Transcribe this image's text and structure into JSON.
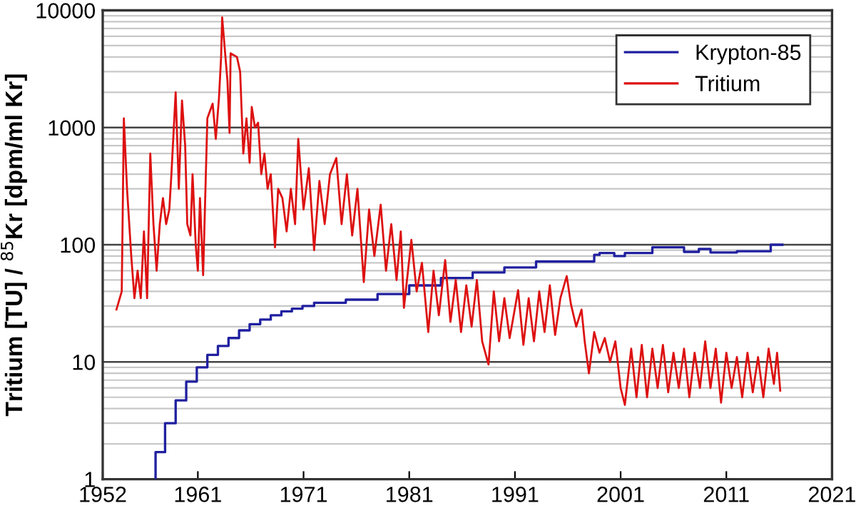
{
  "chart_data": {
    "type": "line",
    "ylabel": "Tritium [TU] / $^{85}$Kr [dpm/ml Kr]",
    "log": "y",
    "grid": "y",
    "legend": "top right",
    "xlim": [
      1952,
      2021
    ],
    "xticks": [
      1952,
      1961,
      1971,
      1981,
      1991,
      2001,
      2011,
      2021
    ],
    "ylim": [
      1,
      10000
    ],
    "yticks": [
      1,
      10,
      100,
      1000,
      10000
    ],
    "series": [
      {
        "name": "Krypton-85",
        "type": "step",
        "color": "#2020a0",
        "x": [
          1957.0,
          1957.0,
          1957.9,
          1958.9,
          1959.9,
          1960.9,
          1961.9,
          1962.9,
          1963.9,
          1964.9,
          1965.9,
          1966.9,
          1967.9,
          1968.9,
          1969.9,
          1970.9,
          1972.0,
          1975.0,
          1978.0,
          1981.0,
          1984.0,
          1987.0,
          1990.0,
          1993.0,
          1996.0,
          1998.5,
          1999.0,
          2000.4,
          2001.4,
          2004.0,
          2007.0,
          2008.4,
          2009.5,
          2012.0,
          2015.2,
          2016.3
        ],
        "values": [
          1,
          1.7,
          3,
          4.7,
          6.8,
          9,
          11.5,
          13.7,
          16,
          18.6,
          21,
          23,
          25,
          27,
          28.5,
          30,
          32,
          34,
          38,
          45,
          52,
          58,
          64,
          72,
          72,
          82,
          85,
          80,
          85,
          95,
          87,
          92,
          86,
          88,
          100,
          100
        ]
      },
      {
        "name": "Tritium",
        "color": "#dd1111",
        "x": [
          1953.3,
          1953.8,
          1954.0,
          1954.3,
          1954.7,
          1955.0,
          1955.3,
          1955.6,
          1955.9,
          1956.2,
          1956.5,
          1956.8,
          1957.1,
          1957.4,
          1957.7,
          1958.0,
          1958.3,
          1958.5,
          1958.9,
          1959.2,
          1959.5,
          1959.8,
          1960.0,
          1960.3,
          1960.5,
          1960.8,
          1961.0,
          1961.2,
          1961.5,
          1961.9,
          1962.4,
          1962.7,
          1963.0,
          1963.2,
          1963.3,
          1963.8,
          1964.0,
          1964.1,
          1964.7,
          1965.0,
          1965.3,
          1965.6,
          1965.9,
          1966.1,
          1966.4,
          1966.7,
          1967.0,
          1967.3,
          1967.6,
          1967.9,
          1968.3,
          1968.6,
          1969.0,
          1969.4,
          1969.8,
          1970.2,
          1970.5,
          1971.0,
          1971.5,
          1972.0,
          1972.5,
          1973.0,
          1973.5,
          1974.1,
          1974.6,
          1975.1,
          1975.6,
          1976.1,
          1976.7,
          1977.2,
          1977.7,
          1978.3,
          1978.8,
          1979.3,
          1979.8,
          1980.2,
          1980.5,
          1981.2,
          1981.7,
          1982.2,
          1982.8,
          1983.3,
          1983.8,
          1984.4,
          1984.9,
          1985.4,
          1985.9,
          1986.4,
          1986.9,
          1987.4,
          1987.9,
          1988.5,
          1989.0,
          1989.5,
          1990.0,
          1990.5,
          1991.3,
          1991.8,
          1992.3,
          1992.8,
          1993.3,
          1993.8,
          1994.3,
          1994.8,
          1995.3,
          1995.9,
          1996.3,
          1996.8,
          1997.3,
          1997.6,
          1998.0,
          1998.5,
          1999.0,
          1999.5,
          2000.0,
          2000.5,
          2001.0,
          2001.4,
          2002.0,
          2002.5,
          2003.0,
          2003.5,
          2004.0,
          2004.5,
          2005.0,
          2005.5,
          2006.0,
          2006.5,
          2007.0,
          2007.5,
          2008.0,
          2008.5,
          2009.0,
          2009.5,
          2010.0,
          2010.5,
          2011.0,
          2011.5,
          2012.0,
          2012.5,
          2013.0,
          2013.5,
          2014.0,
          2014.5,
          2015.0,
          2015.5,
          2015.8,
          2016.1
        ],
        "values": [
          28,
          40,
          1200,
          300,
          80,
          35,
          60,
          35,
          130,
          35,
          600,
          150,
          60,
          150,
          250,
          150,
          200,
          400,
          2000,
          300,
          1700,
          700,
          150,
          120,
          400,
          100,
          60,
          250,
          55,
          1200,
          1600,
          800,
          1800,
          4000,
          8700,
          2500,
          900,
          4300,
          4000,
          3000,
          600,
          1200,
          500,
          1500,
          1000,
          1100,
          400,
          600,
          300,
          400,
          95,
          300,
          250,
          130,
          300,
          150,
          800,
          200,
          450,
          90,
          350,
          150,
          400,
          550,
          150,
          400,
          120,
          300,
          48,
          200,
          80,
          220,
          60,
          150,
          50,
          130,
          29,
          110,
          40,
          70,
          18,
          60,
          25,
          74,
          22,
          50,
          18,
          45,
          20,
          50,
          15,
          9.5,
          40,
          15,
          35,
          16,
          41,
          14,
          35,
          15,
          40,
          18,
          45,
          17,
          35,
          54,
          31,
          20,
          28,
          15,
          8,
          18,
          12,
          16,
          10,
          15,
          6,
          4.3,
          13,
          5,
          14,
          5,
          13,
          6,
          14,
          5.5,
          12,
          6,
          13,
          5,
          12,
          6,
          15,
          6,
          13,
          4.5,
          12,
          6,
          11,
          5,
          12,
          5.5,
          11,
          5,
          13,
          6.5,
          12,
          5.7
        ]
      }
    ]
  }
}
